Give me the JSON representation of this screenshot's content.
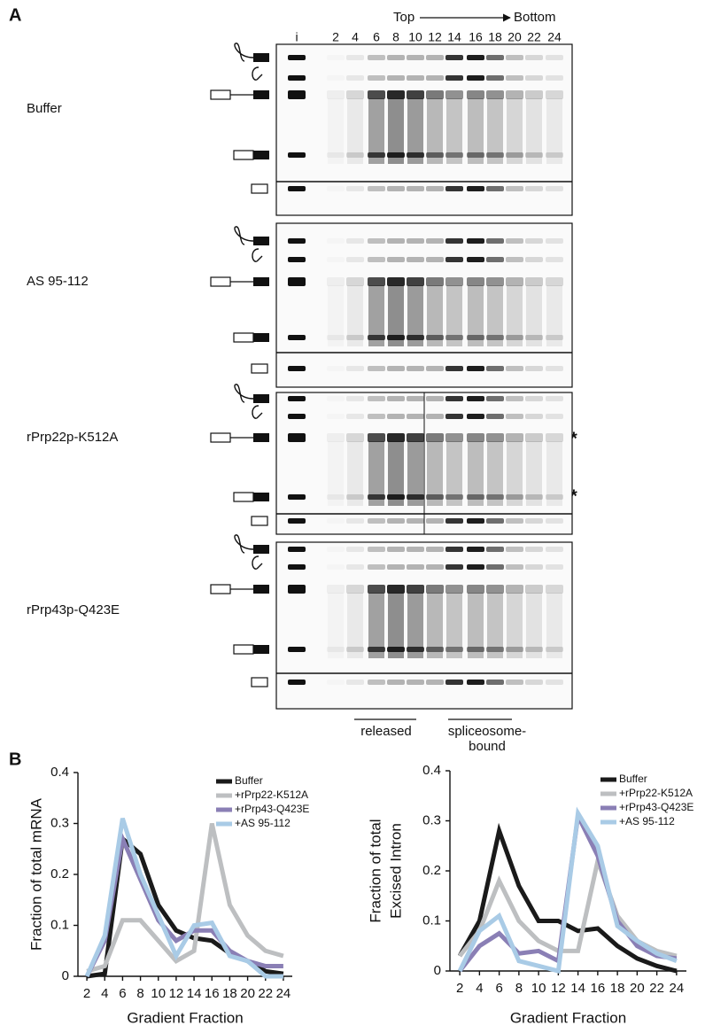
{
  "panel_a": {
    "label": "A",
    "top": "Top",
    "bottom": "Bottom",
    "lanes": [
      "i",
      "2",
      "4",
      "6",
      "8",
      "10",
      "12",
      "14",
      "16",
      "18",
      "20",
      "22",
      "24"
    ],
    "conditions": [
      "Buffer",
      "AS 95-112",
      "rPrp22p-K512A",
      "rPrp43p-Q423E"
    ],
    "asterisks": [
      "*",
      "*"
    ],
    "released": "released",
    "spliceosome_bound": [
      "spliceosome-",
      "bound"
    ]
  },
  "panel_b": {
    "label": "B"
  },
  "chart_data": [
    {
      "type": "line",
      "ylabel": [
        "Fraction of total mRNA"
      ],
      "xlabel": "Gradient Fraction",
      "x": [
        2,
        4,
        6,
        8,
        10,
        12,
        14,
        16,
        18,
        20,
        22,
        24
      ],
      "xlim": [
        1,
        25
      ],
      "xticks": [
        2,
        4,
        6,
        8,
        10,
        12,
        14,
        16,
        18,
        20,
        22,
        24
      ],
      "ylim": [
        0,
        0.4
      ],
      "yticks": [
        0,
        0.1,
        0.2,
        0.3,
        0.4
      ],
      "series": [
        {
          "name": "Buffer",
          "color": "#1a1a1a",
          "values": [
            0.0,
            0.005,
            0.27,
            0.24,
            0.14,
            0.09,
            0.075,
            0.07,
            0.045,
            0.03,
            0.01,
            0.005
          ]
        },
        {
          "name": "+rPrp22-K512A",
          "color": "#bdbfc1",
          "values": [
            0.01,
            0.02,
            0.11,
            0.11,
            0.07,
            0.03,
            0.05,
            0.3,
            0.14,
            0.08,
            0.05,
            0.04
          ]
        },
        {
          "name": "+rPrp43-Q423E",
          "color": "#8a7fb5",
          "values": [
            0.0,
            0.07,
            0.27,
            0.19,
            0.11,
            0.07,
            0.09,
            0.09,
            0.05,
            0.03,
            0.02,
            0.02
          ]
        },
        {
          "name": "+AS 95-112",
          "color": "#a9cbe6",
          "values": [
            0.0,
            0.08,
            0.31,
            0.2,
            0.12,
            0.04,
            0.1,
            0.105,
            0.04,
            0.03,
            0.0,
            0.0
          ]
        }
      ]
    },
    {
      "type": "line",
      "ylabel": [
        "Fraction of total",
        "Excised Intron"
      ],
      "xlabel": "Gradient Fraction",
      "x": [
        2,
        4,
        6,
        8,
        10,
        12,
        14,
        16,
        18,
        20,
        22,
        24
      ],
      "xlim": [
        1,
        25
      ],
      "xticks": [
        2,
        4,
        6,
        8,
        10,
        12,
        14,
        16,
        18,
        20,
        22,
        24
      ],
      "ylim": [
        0,
        0.4
      ],
      "yticks": [
        0,
        0.1,
        0.2,
        0.3,
        0.4
      ],
      "series": [
        {
          "name": "Buffer",
          "color": "#1a1a1a",
          "values": [
            0.03,
            0.1,
            0.28,
            0.17,
            0.1,
            0.1,
            0.08,
            0.085,
            0.05,
            0.025,
            0.01,
            0.0
          ]
        },
        {
          "name": "+rPrp22-K512A",
          "color": "#bdbfc1",
          "values": [
            0.03,
            0.08,
            0.18,
            0.1,
            0.06,
            0.04,
            0.04,
            0.22,
            0.11,
            0.06,
            0.04,
            0.03
          ]
        },
        {
          "name": "+rPrp43-Q423E",
          "color": "#8a7fb5",
          "values": [
            0.0,
            0.05,
            0.075,
            0.035,
            0.04,
            0.02,
            0.31,
            0.23,
            0.1,
            0.05,
            0.03,
            0.025
          ]
        },
        {
          "name": "+AS 95-112",
          "color": "#a9cbe6",
          "values": [
            0.0,
            0.08,
            0.11,
            0.02,
            0.01,
            0.0,
            0.315,
            0.25,
            0.09,
            0.06,
            0.035,
            0.02
          ]
        }
      ]
    }
  ]
}
